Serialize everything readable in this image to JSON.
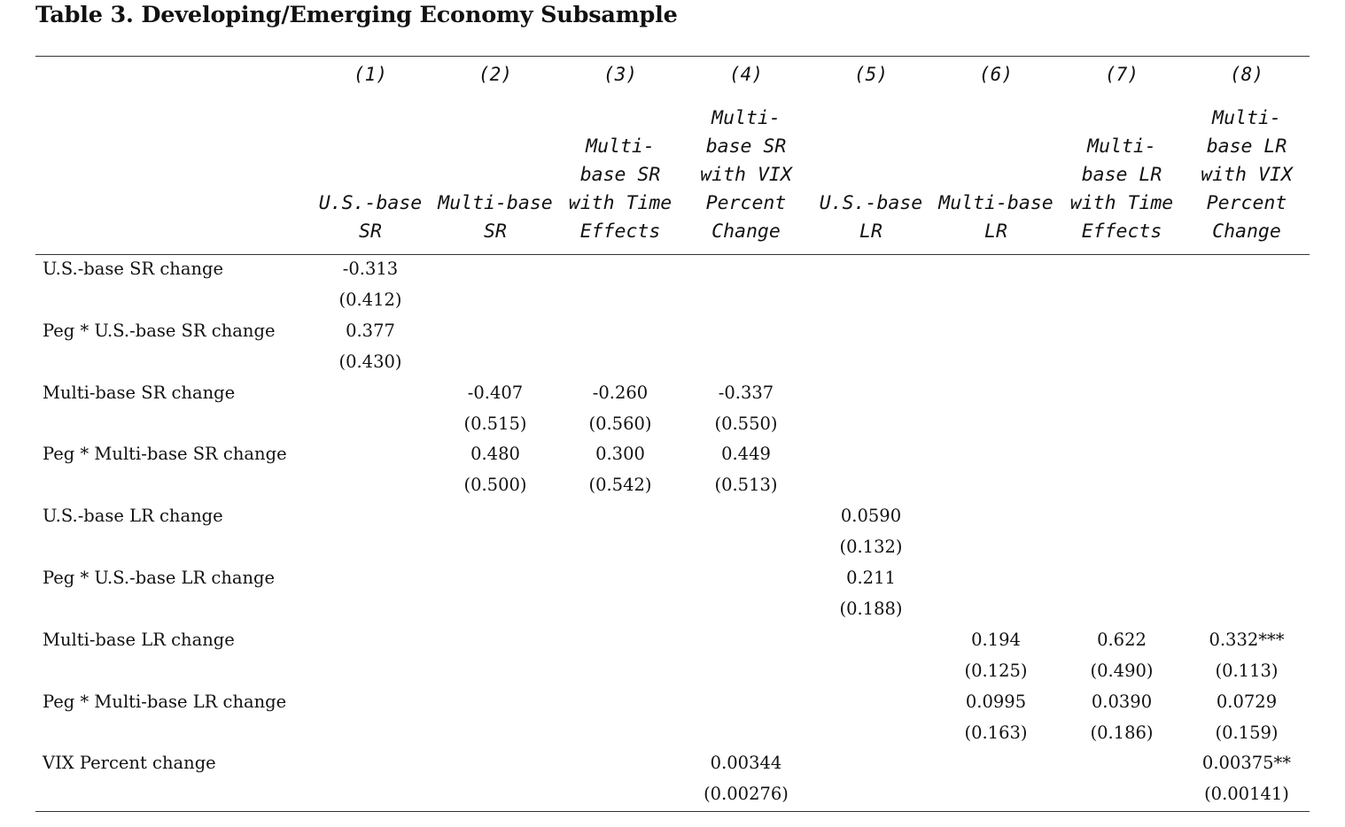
{
  "title": "Table 3. Developing/Emerging Economy Subsample",
  "columns": [
    {
      "num": "(1)",
      "head": "U.S.-base\nSR"
    },
    {
      "num": "(2)",
      "head": "Multi-base\nSR"
    },
    {
      "num": "(3)",
      "head": "Multi-\nbase SR\nwith Time\nEffects"
    },
    {
      "num": "(4)",
      "head": "Multi-\nbase SR\nwith VIX\nPercent\nChange"
    },
    {
      "num": "(5)",
      "head": "U.S.-base\nLR"
    },
    {
      "num": "(6)",
      "head": "Multi-base\nLR"
    },
    {
      "num": "(7)",
      "head": "Multi-\nbase LR\nwith Time\nEffects"
    },
    {
      "num": "(8)",
      "head": "Multi-\nbase LR\nwith VIX\nPercent\nChange"
    }
  ],
  "rows": [
    {
      "label": "U.S.-base SR change",
      "coef": [
        "-0.313",
        "",
        "",
        "",
        "",
        "",
        "",
        ""
      ],
      "se": [
        "(0.412)",
        "",
        "",
        "",
        "",
        "",
        "",
        ""
      ]
    },
    {
      "label": "Peg * U.S.-base SR change",
      "coef": [
        "0.377",
        "",
        "",
        "",
        "",
        "",
        "",
        ""
      ],
      "se": [
        "(0.430)",
        "",
        "",
        "",
        "",
        "",
        "",
        ""
      ]
    },
    {
      "label": "Multi-base SR change",
      "coef": [
        "",
        "-0.407",
        "-0.260",
        "-0.337",
        "",
        "",
        "",
        ""
      ],
      "se": [
        "",
        "(0.515)",
        "(0.560)",
        "(0.550)",
        "",
        "",
        "",
        ""
      ]
    },
    {
      "label": "Peg * Multi-base SR change",
      "coef": [
        "",
        "0.480",
        "0.300",
        "0.449",
        "",
        "",
        "",
        ""
      ],
      "se": [
        "",
        "(0.500)",
        "(0.542)",
        "(0.513)",
        "",
        "",
        "",
        ""
      ]
    },
    {
      "label": "U.S.-base LR change",
      "coef": [
        "",
        "",
        "",
        "",
        "0.0590",
        "",
        "",
        ""
      ],
      "se": [
        "",
        "",
        "",
        "",
        "(0.132)",
        "",
        "",
        ""
      ]
    },
    {
      "label": "Peg * U.S.-base LR change",
      "coef": [
        "",
        "",
        "",
        "",
        "0.211",
        "",
        "",
        ""
      ],
      "se": [
        "",
        "",
        "",
        "",
        "(0.188)",
        "",
        "",
        ""
      ]
    },
    {
      "label": "Multi-base LR change",
      "coef": [
        "",
        "",
        "",
        "",
        "",
        "0.194",
        "0.622",
        "0.332***"
      ],
      "se": [
        "",
        "",
        "",
        "",
        "",
        "(0.125)",
        "(0.490)",
        "(0.113)"
      ]
    },
    {
      "label": "Peg * Multi-base LR change",
      "coef": [
        "",
        "",
        "",
        "",
        "",
        "0.0995",
        "0.0390",
        "0.0729"
      ],
      "se": [
        "",
        "",
        "",
        "",
        "",
        "(0.163)",
        "(0.186)",
        "(0.159)"
      ]
    },
    {
      "label": "VIX Percent change",
      "coef": [
        "",
        "",
        "",
        "0.00344",
        "",
        "",
        "",
        "0.00375**"
      ],
      "se": [
        "",
        "",
        "",
        "(0.00276)",
        "",
        "",
        "",
        "(0.00141)"
      ]
    }
  ]
}
